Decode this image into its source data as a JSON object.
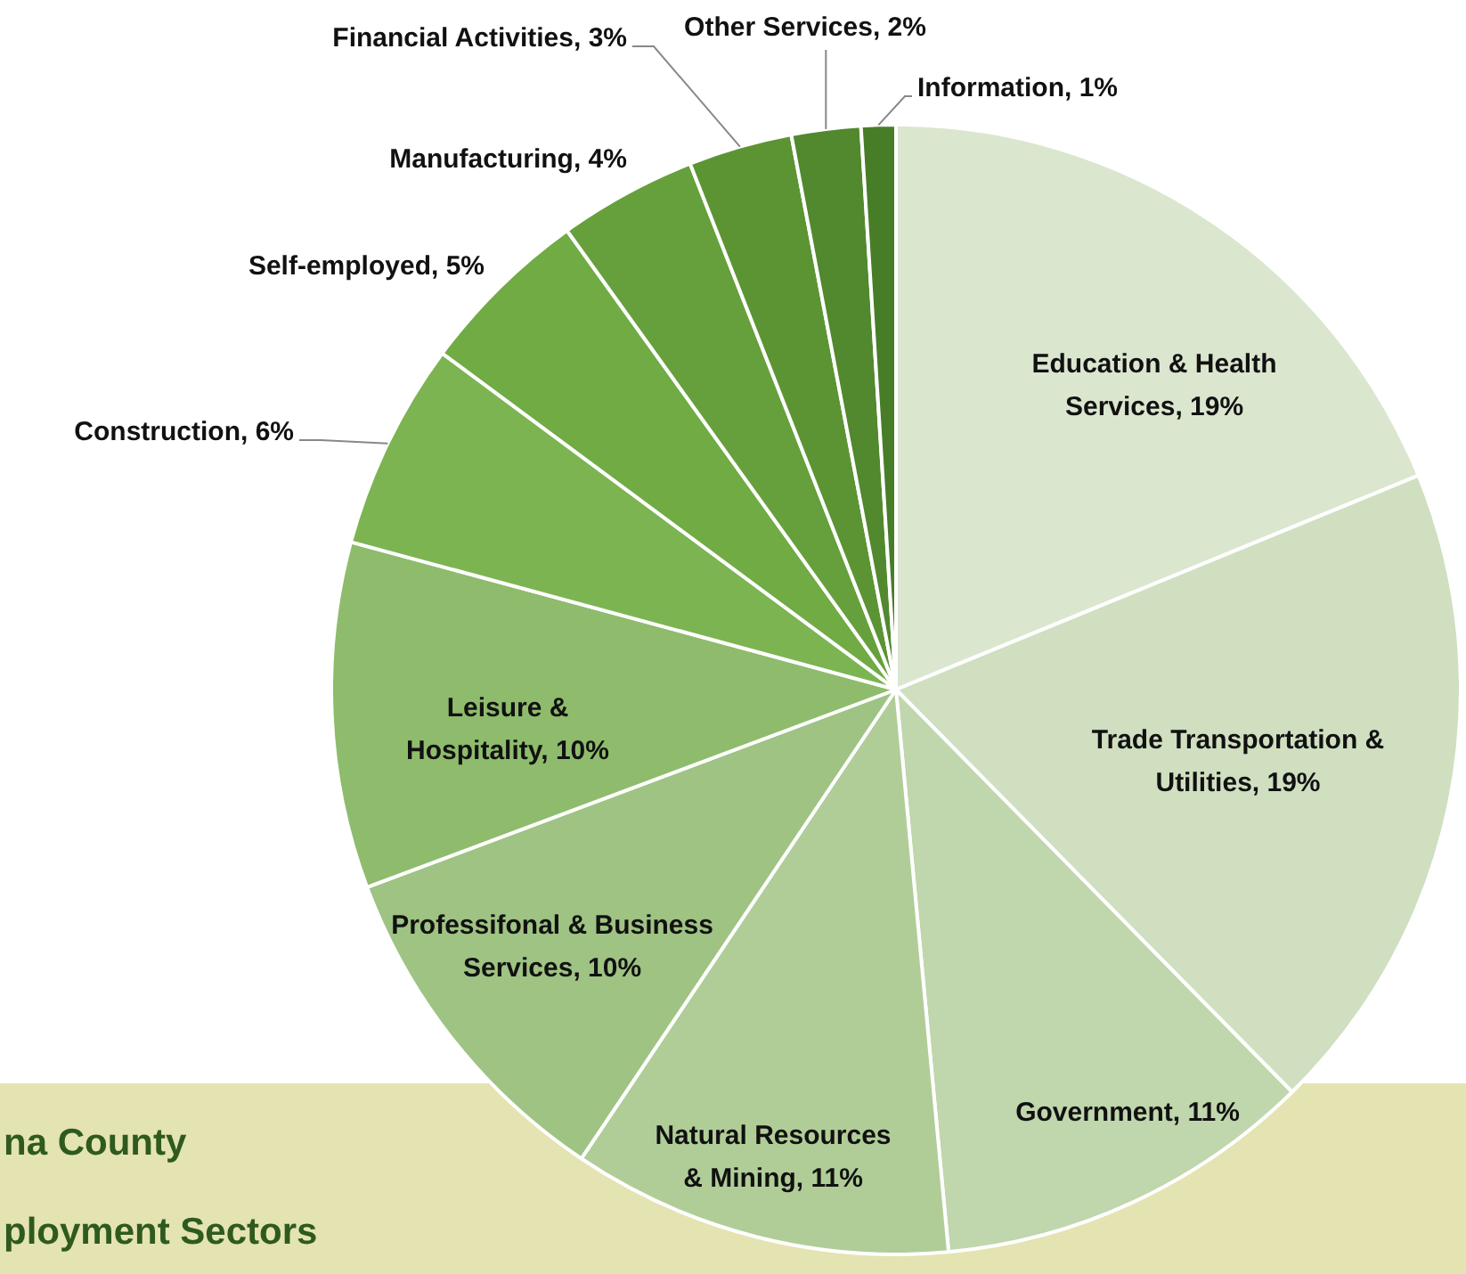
{
  "chart_data": {
    "type": "pie",
    "categories": [
      "Education & Health Services",
      "Trade Transportation & Utilities",
      "Government",
      "Natural Resources & Mining",
      "Professifonal & Business Services",
      "Leisure & Hospitality",
      "Construction",
      "Self-employed",
      "Manufacturing",
      "Financial Activities",
      "Other Services",
      "Information"
    ],
    "values": [
      19,
      19,
      11,
      11,
      10,
      10,
      6,
      5,
      4,
      3,
      2,
      1
    ],
    "value_labels": [
      "19%",
      "19%",
      "11%",
      "11%",
      "10%",
      "10%",
      "6%",
      "5%",
      "4%",
      "3%",
      "2%",
      "1%"
    ],
    "colors": [
      "#dbe6cf",
      "#cfdfc0",
      "#c0d6ac",
      "#b0cd98",
      "#9fc383",
      "#8ebc6c",
      "#7cb452",
      "#70ab44",
      "#66a03c",
      "#5c9434",
      "#52882e",
      "#487d28"
    ],
    "legend": false,
    "annotations": [
      "na County",
      "ployment Sectors"
    ]
  }
}
